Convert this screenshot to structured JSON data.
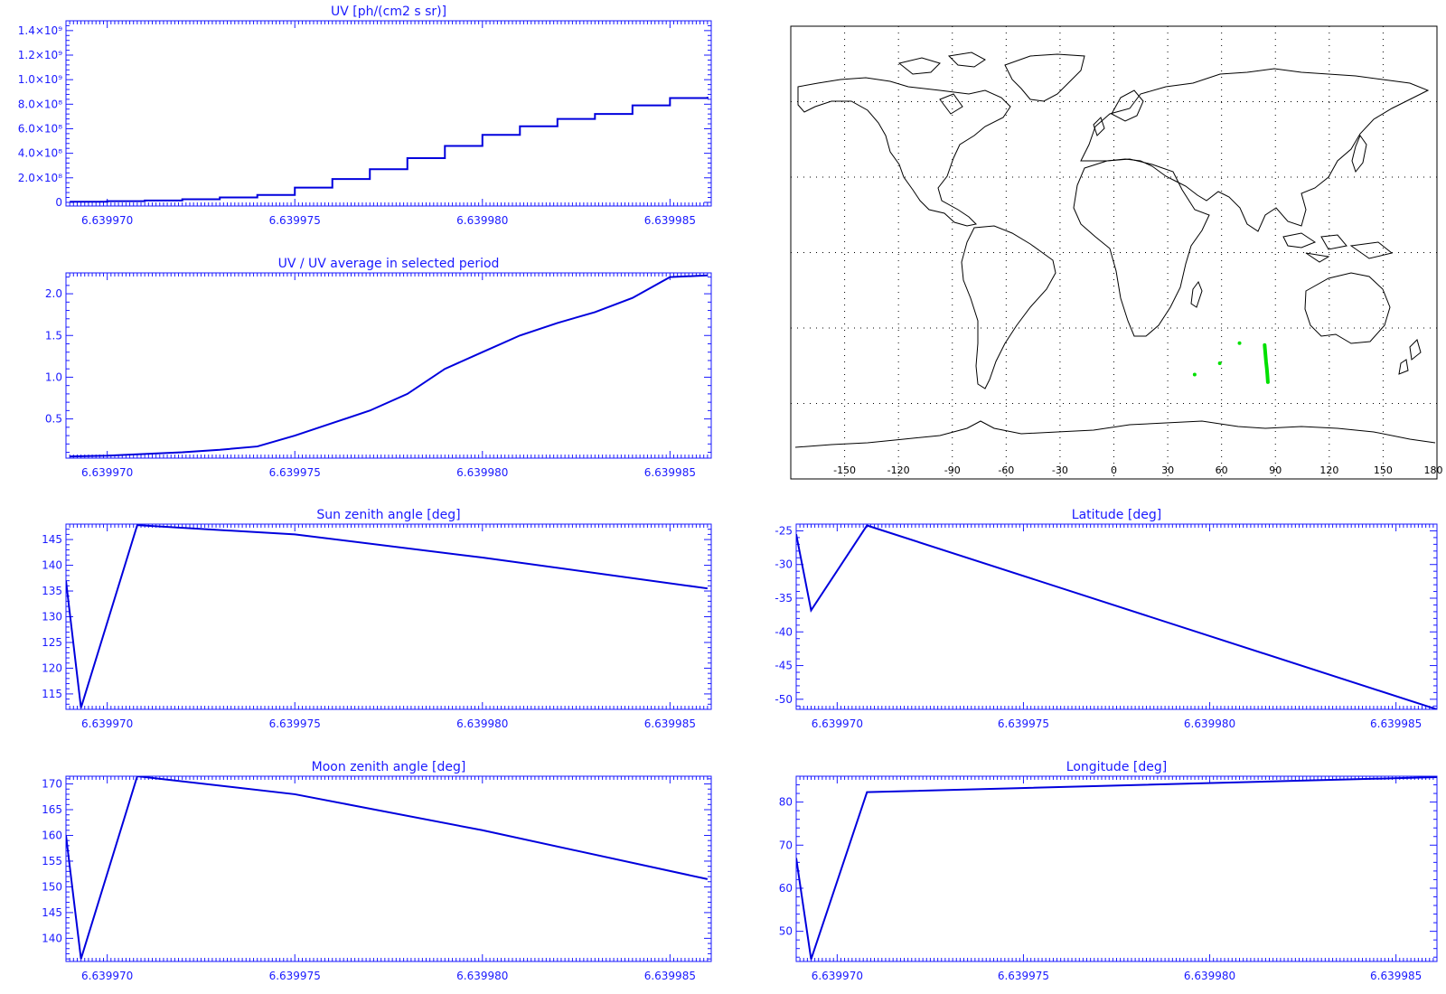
{
  "colors": {
    "axis": "#1a1aff",
    "series": "#0000dd",
    "track": "#00e000",
    "coast": "#000000",
    "grid": "#000000"
  },
  "chart_data": [
    {
      "id": "uv",
      "type": "line",
      "title": "UV [ph/(cm2 s sr)]",
      "xlabel": "",
      "ylabel": "",
      "xlim": [
        6.6399689,
        6.6399861
      ],
      "ylim": [
        -30000000,
        1480000000
      ],
      "xticks": [
        "6.639970",
        "6.639975",
        "6.639980",
        "6.639985"
      ],
      "yticks": [
        "0",
        "2.0×10⁸",
        "4.0×10⁸",
        "6.0×10⁸",
        "8.0×10⁸",
        "1.0×10⁹",
        "1.2×10⁹",
        "1.4×10⁹"
      ],
      "step": true,
      "x": [
        6.639969,
        6.63997,
        6.639971,
        6.639972,
        6.639973,
        6.639974,
        6.639975,
        6.639976,
        6.639977,
        6.639978,
        6.639979,
        6.63998,
        6.639981,
        6.639982,
        6.639983,
        6.639984,
        6.639985,
        6.639986
      ],
      "y": [
        5000000,
        10000000,
        15000000,
        25000000,
        40000000,
        60000000,
        120000000,
        190000000,
        270000000,
        360000000,
        460000000,
        550000000,
        620000000,
        680000000,
        720000000,
        790000000,
        850000000,
        860000000
      ]
    },
    {
      "id": "uvratio",
      "type": "line",
      "title": "UV / UV average in selected period",
      "xlabel": "",
      "ylabel": "",
      "xlim": [
        6.6399689,
        6.6399861
      ],
      "ylim": [
        0.03,
        2.25
      ],
      "xticks": [
        "6.639970",
        "6.639975",
        "6.639980",
        "6.639985"
      ],
      "yticks": [
        "0.5",
        "1.0",
        "1.5",
        "2.0"
      ],
      "step": false,
      "x": [
        6.639969,
        6.63997,
        6.639971,
        6.639972,
        6.639973,
        6.639974,
        6.639975,
        6.639976,
        6.639977,
        6.639978,
        6.639979,
        6.63998,
        6.639981,
        6.639982,
        6.639983,
        6.639984,
        6.639985,
        6.639986
      ],
      "y": [
        0.05,
        0.06,
        0.08,
        0.1,
        0.13,
        0.17,
        0.3,
        0.45,
        0.6,
        0.8,
        1.1,
        1.3,
        1.5,
        1.65,
        1.78,
        1.95,
        2.2,
        2.22
      ]
    },
    {
      "id": "sza",
      "type": "line",
      "title": "Sun zenith angle [deg]",
      "xlabel": "",
      "ylabel": "",
      "xlim": [
        6.6399689,
        6.6399861
      ],
      "ylim": [
        112,
        148
      ],
      "xticks": [
        "6.639970",
        "6.639975",
        "6.639980",
        "6.639985"
      ],
      "yticks": [
        "115",
        "120",
        "125",
        "130",
        "135",
        "140",
        "145"
      ],
      "step": false,
      "x": [
        6.6399689,
        6.6399693,
        6.6399708,
        6.639975,
        6.63998,
        6.639986
      ],
      "y": [
        137,
        112.3,
        147.8,
        146,
        141.5,
        135.5
      ]
    },
    {
      "id": "lat",
      "type": "line",
      "title": "Latitude [deg]",
      "xlabel": "",
      "ylabel": "",
      "xlim": [
        6.6399689,
        6.6399861
      ],
      "ylim": [
        -51.5,
        -24
      ],
      "xticks": [
        "6.639970",
        "6.639975",
        "6.639980",
        "6.639985"
      ],
      "yticks": [
        "-50",
        "-45",
        "-40",
        "-35",
        "-30",
        "-25"
      ],
      "step": false,
      "x": [
        6.6399689,
        6.6399693,
        6.6399708,
        6.6399861
      ],
      "y": [
        -25.5,
        -36.8,
        -24.2,
        -51.5
      ]
    },
    {
      "id": "mza",
      "type": "line",
      "title": "Moon zenith angle [deg]",
      "xlabel": "",
      "ylabel": "",
      "xlim": [
        6.6399689,
        6.6399861
      ],
      "ylim": [
        135.5,
        171.5
      ],
      "xticks": [
        "6.639970",
        "6.639975",
        "6.639980",
        "6.639985"
      ],
      "yticks": [
        "140",
        "145",
        "150",
        "155",
        "160",
        "165",
        "170"
      ],
      "step": false,
      "x": [
        6.6399689,
        6.6399693,
        6.6399708,
        6.639975,
        6.63998,
        6.639986
      ],
      "y": [
        160,
        136,
        171.5,
        168,
        161,
        151.5
      ]
    },
    {
      "id": "lon",
      "type": "line",
      "title": "Longitude [deg]",
      "xlabel": "",
      "ylabel": "",
      "xlim": [
        6.6399689,
        6.6399861
      ],
      "ylim": [
        43,
        86
      ],
      "xticks": [
        "6.639970",
        "6.639975",
        "6.639980",
        "6.639985"
      ],
      "yticks": [
        "50",
        "60",
        "70",
        "80"
      ],
      "step": false,
      "x": [
        6.6399689,
        6.6399693,
        6.6399708,
        6.6399861
      ],
      "y": [
        67,
        43.5,
        82.3,
        85.8
      ]
    }
  ],
  "map": {
    "xticks": [
      "-150",
      "-120",
      "-90",
      "-60",
      "-30",
      "0",
      "30",
      "60",
      "90",
      "120",
      "150",
      "180"
    ],
    "xtick_values": [
      -150,
      -120,
      -90,
      -60,
      -30,
      0,
      30,
      60,
      90,
      120,
      150,
      180
    ],
    "lon_range": [
      -180,
      180
    ],
    "lat_range": [
      -90,
      90
    ],
    "lat_gridlines": [
      -60,
      -30,
      0,
      30,
      60
    ],
    "track": [
      [
        84,
        -36.8
      ],
      [
        84.2,
        -38.5
      ],
      [
        84.5,
        -41
      ],
      [
        84.8,
        -43.5
      ],
      [
        85.2,
        -46
      ],
      [
        85.5,
        -48.5
      ],
      [
        85.8,
        -51.5
      ]
    ],
    "track_dots": [
      [
        70,
        -36
      ],
      [
        59,
        -44
      ],
      [
        45,
        -48.5
      ]
    ]
  }
}
